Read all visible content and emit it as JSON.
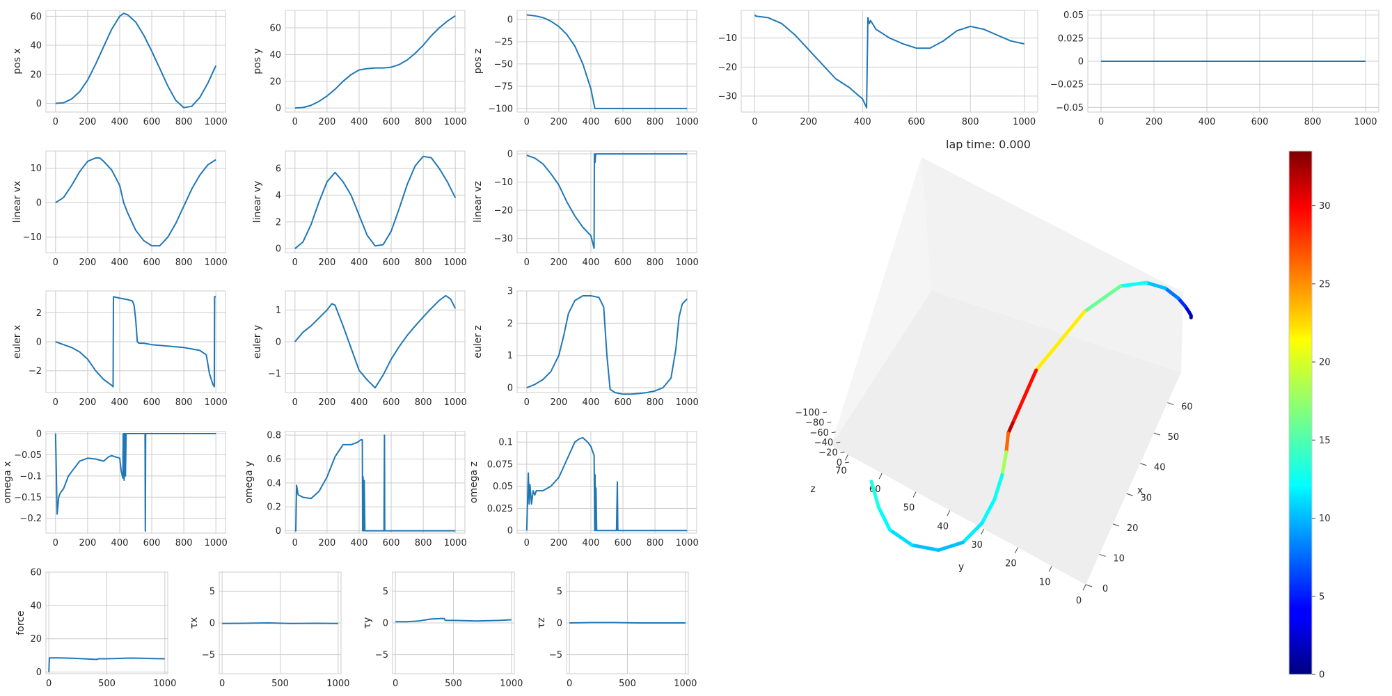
{
  "chart_data": [
    {
      "type": "line",
      "ylabel": "pos x",
      "xlim": [
        -60,
        1060
      ],
      "ylim": [
        -6,
        64
      ],
      "xticks": [
        0,
        200,
        400,
        600,
        800,
        1000
      ],
      "yticks": [
        0,
        20,
        40,
        60
      ],
      "x": [
        0,
        50,
        100,
        150,
        200,
        250,
        300,
        350,
        400,
        425,
        450,
        500,
        550,
        600,
        650,
        700,
        750,
        800,
        850,
        900,
        950,
        1000
      ],
      "values": [
        0,
        0.4,
        3,
        8,
        16,
        27,
        39,
        51,
        60,
        62,
        61,
        56,
        47,
        36,
        24,
        12,
        2,
        -3,
        -2,
        4,
        14,
        26
      ]
    },
    {
      "type": "line",
      "ylabel": "pos y",
      "xlim": [
        -60,
        1060
      ],
      "ylim": [
        -3,
        73
      ],
      "xticks": [
        0,
        200,
        400,
        600,
        800,
        1000
      ],
      "yticks": [
        0,
        20,
        40,
        60
      ],
      "x": [
        0,
        50,
        100,
        150,
        200,
        250,
        300,
        350,
        400,
        450,
        500,
        550,
        600,
        650,
        700,
        750,
        800,
        850,
        900,
        950,
        1000
      ],
      "values": [
        0,
        0.4,
        2,
        5,
        9,
        14,
        20,
        25,
        28.5,
        29.5,
        30,
        30,
        30.5,
        32.5,
        36,
        41,
        47,
        54,
        60,
        65,
        69
      ]
    },
    {
      "type": "line",
      "ylabel": "pos z",
      "xlim": [
        -60,
        1060
      ],
      "ylim": [
        -104,
        10
      ],
      "xticks": [
        0,
        200,
        400,
        600,
        800,
        1000
      ],
      "yticks": [
        0,
        -25,
        -50,
        -75,
        -100
      ],
      "x": [
        0,
        50,
        100,
        150,
        200,
        250,
        300,
        350,
        400,
        425,
        450,
        500,
        600,
        700,
        800,
        900,
        1000
      ],
      "values": [
        5,
        4,
        2,
        -2,
        -8,
        -17,
        -30,
        -50,
        -78,
        -100,
        -100,
        -100,
        -100,
        -100,
        -100,
        -100,
        -100
      ]
    },
    {
      "type": "line",
      "ylabel": "",
      "xlim": [
        -50,
        1050
      ],
      "ylim": [
        -35.5,
        -0.5
      ],
      "xticks": [
        0,
        200,
        400,
        600,
        800,
        1000
      ],
      "yticks": [
        -10,
        -20,
        -30
      ],
      "x": [
        0,
        5,
        50,
        100,
        150,
        200,
        250,
        300,
        350,
        400,
        415,
        420,
        425,
        430,
        450,
        500,
        550,
        600,
        650,
        700,
        750,
        800,
        850,
        900,
        950,
        1000
      ],
      "values": [
        -2,
        -2.5,
        -3,
        -5,
        -9,
        -14,
        -19,
        -24,
        -27,
        -31,
        -34,
        -3,
        -5,
        -4,
        -7,
        -10,
        -12,
        -13.5,
        -13.5,
        -11,
        -7.5,
        -6,
        -7,
        -9,
        -11,
        -12
      ]
    },
    {
      "type": "line",
      "ylabel": "",
      "xlim": [
        -50,
        1050
      ],
      "ylim": [
        -0.055,
        0.055
      ],
      "xticks": [
        0,
        200,
        400,
        600,
        800,
        1000
      ],
      "yticks": [
        0.05,
        0.025,
        0,
        -0.025,
        -0.05
      ],
      "x": [
        0,
        1000
      ],
      "values": [
        0,
        0
      ]
    },
    {
      "type": "line",
      "ylabel": "linear vx",
      "xlim": [
        -60,
        1060
      ],
      "ylim": [
        -14.5,
        15
      ],
      "xticks": [
        0,
        200,
        400,
        600,
        800,
        1000
      ],
      "yticks": [
        10,
        0,
        -10
      ],
      "x": [
        0,
        50,
        100,
        150,
        200,
        250,
        275,
        300,
        350,
        400,
        425,
        450,
        500,
        550,
        600,
        650,
        700,
        750,
        800,
        850,
        900,
        950,
        1000
      ],
      "values": [
        0,
        1.5,
        5,
        9,
        12,
        13,
        13,
        12,
        9.5,
        5,
        0,
        -3,
        -8,
        -11,
        -12.5,
        -12.5,
        -10,
        -6,
        -1,
        4,
        8,
        11,
        12.5
      ]
    },
    {
      "type": "line",
      "ylabel": "linear vy",
      "xlim": [
        -60,
        1060
      ],
      "ylim": [
        -0.3,
        7.3
      ],
      "xticks": [
        0,
        200,
        400,
        600,
        800,
        1000
      ],
      "yticks": [
        0,
        2,
        4,
        6
      ],
      "x": [
        0,
        50,
        100,
        150,
        200,
        250,
        300,
        350,
        400,
        450,
        500,
        550,
        600,
        650,
        700,
        750,
        800,
        850,
        900,
        950,
        1000
      ],
      "values": [
        0,
        0.5,
        1.8,
        3.5,
        5,
        5.7,
        5,
        4,
        2.5,
        1,
        0.2,
        0.3,
        1.3,
        3,
        4.8,
        6.2,
        6.9,
        6.8,
        6,
        5,
        3.8
      ]
    },
    {
      "type": "line",
      "ylabel": "linear vz",
      "xlim": [
        -60,
        1060
      ],
      "ylim": [
        -35,
        1
      ],
      "xticks": [
        0,
        200,
        400,
        600,
        800,
        1000
      ],
      "yticks": [
        0,
        -10,
        -20,
        -30
      ],
      "x": [
        0,
        50,
        100,
        150,
        200,
        250,
        300,
        350,
        400,
        418,
        420,
        422,
        424,
        426,
        430,
        440,
        500,
        600,
        700,
        800,
        900,
        1000
      ],
      "values": [
        -0.5,
        -1.5,
        -3.5,
        -7,
        -11,
        -17,
        -22,
        -26,
        -29,
        -33,
        -33.5,
        0,
        -1,
        -3,
        0,
        0,
        0,
        0,
        0,
        0,
        0,
        0
      ]
    },
    {
      "type": "line",
      "ylabel": "euler x",
      "xlim": [
        -60,
        1060
      ],
      "ylim": [
        -3.5,
        3.5
      ],
      "xticks": [
        0,
        200,
        400,
        600,
        800,
        1000
      ],
      "yticks": [
        2,
        0,
        -2
      ],
      "x": [
        0,
        50,
        100,
        150,
        200,
        250,
        300,
        350,
        359,
        361,
        400,
        450,
        480,
        490,
        500,
        510,
        520,
        550,
        600,
        700,
        800,
        850,
        900,
        940,
        960,
        980,
        990,
        992,
        1000
      ],
      "values": [
        0,
        -0.2,
        -0.4,
        -0.7,
        -1.2,
        -2,
        -2.6,
        -3,
        -3.1,
        3.1,
        3,
        2.9,
        2.8,
        2.5,
        1.5,
        0,
        -0.1,
        -0.1,
        -0.2,
        -0.3,
        -0.4,
        -0.5,
        -0.6,
        -0.9,
        -2.2,
        -2.9,
        -3.1,
        3.1,
        3.1
      ]
    },
    {
      "type": "line",
      "ylabel": "euler y",
      "xlim": [
        -60,
        1060
      ],
      "ylim": [
        -1.6,
        1.6
      ],
      "xticks": [
        0,
        200,
        400,
        600,
        800,
        1000
      ],
      "yticks": [
        1,
        0,
        -1
      ],
      "x": [
        0,
        50,
        100,
        150,
        200,
        230,
        250,
        300,
        350,
        400,
        450,
        500,
        550,
        600,
        650,
        700,
        750,
        800,
        850,
        900,
        940,
        970,
        1000
      ],
      "values": [
        0,
        0.3,
        0.5,
        0.75,
        1,
        1.2,
        1.15,
        0.5,
        -0.2,
        -0.9,
        -1.2,
        -1.45,
        -1.05,
        -0.55,
        -0.15,
        0.2,
        0.5,
        0.78,
        1.05,
        1.3,
        1.45,
        1.35,
        1.05
      ]
    },
    {
      "type": "line",
      "ylabel": "euler z",
      "xlim": [
        -60,
        1060
      ],
      "ylim": [
        -0.15,
        3
      ],
      "xticks": [
        0,
        200,
        400,
        600,
        800,
        1000
      ],
      "yticks": [
        0,
        1,
        2,
        3
      ],
      "x": [
        0,
        50,
        100,
        150,
        200,
        230,
        260,
        300,
        350,
        400,
        450,
        480,
        500,
        520,
        550,
        600,
        650,
        700,
        750,
        800,
        850,
        900,
        930,
        950,
        970,
        1000
      ],
      "values": [
        0,
        0.1,
        0.25,
        0.5,
        1,
        1.6,
        2.3,
        2.7,
        2.85,
        2.85,
        2.8,
        2.5,
        1,
        -0.05,
        -0.15,
        -0.2,
        -0.2,
        -0.18,
        -0.15,
        -0.1,
        0,
        0.3,
        1.2,
        2.2,
        2.6,
        2.75
      ]
    },
    {
      "type": "line",
      "ylabel": "omega x",
      "xlim": [
        -60,
        1060
      ],
      "ylim": [
        -0.235,
        0.005
      ],
      "xticks": [
        0,
        200,
        400,
        600,
        800,
        1000
      ],
      "yticks": [
        0,
        -0.05,
        -0.1,
        -0.15,
        -0.2
      ],
      "x": [
        0,
        10,
        20,
        30,
        50,
        80,
        100,
        150,
        200,
        250,
        300,
        330,
        350,
        400,
        410,
        420,
        422,
        424,
        426,
        428,
        430,
        432,
        434,
        436,
        440,
        450,
        500,
        550,
        558,
        560,
        562,
        570,
        600,
        700,
        800,
        900,
        1000
      ],
      "values": [
        0,
        -0.19,
        -0.15,
        -0.14,
        -0.13,
        -0.1,
        -0.09,
        -0.065,
        -0.058,
        -0.06,
        -0.065,
        -0.055,
        -0.052,
        -0.058,
        -0.09,
        -0.105,
        0,
        -0.1,
        0,
        -0.11,
        0,
        -0.09,
        0,
        -0.1,
        0,
        0,
        0,
        0,
        0,
        -0.23,
        0,
        0,
        0,
        0,
        0,
        0,
        0
      ]
    },
    {
      "type": "line",
      "ylabel": "omega y",
      "xlim": [
        -60,
        1060
      ],
      "ylim": [
        -0.02,
        0.83
      ],
      "xticks": [
        0,
        200,
        400,
        600,
        800,
        1000
      ],
      "yticks": [
        0,
        0.2,
        0.4,
        0.6,
        0.8
      ],
      "x": [
        0,
        5,
        10,
        20,
        50,
        100,
        150,
        200,
        250,
        300,
        350,
        390,
        410,
        420,
        422,
        425,
        428,
        432,
        436,
        440,
        450,
        500,
        555,
        558,
        560,
        562,
        566,
        600,
        700,
        800,
        900,
        1000
      ],
      "values": [
        0,
        0,
        0.38,
        0.3,
        0.28,
        0.27,
        0.33,
        0.45,
        0.62,
        0.72,
        0.72,
        0.74,
        0.76,
        0.76,
        0,
        0.45,
        0,
        0.42,
        0,
        0,
        0,
        0,
        0,
        0.8,
        0,
        0,
        0,
        0,
        0,
        0,
        0,
        0
      ]
    },
    {
      "type": "line",
      "ylabel": "omega z",
      "xlim": [
        -60,
        1060
      ],
      "ylim": [
        -0.003,
        0.112
      ],
      "xticks": [
        0,
        200,
        400,
        600,
        800,
        1000
      ],
      "yticks": [
        0,
        0.025,
        0.05,
        0.075,
        0.1
      ],
      "x": [
        0,
        10,
        15,
        20,
        30,
        40,
        50,
        60,
        100,
        150,
        200,
        250,
        300,
        330,
        350,
        380,
        400,
        420,
        424,
        426,
        428,
        432,
        436,
        440,
        450,
        500,
        560,
        565,
        568,
        572,
        600,
        700,
        800,
        900,
        1000
      ],
      "values": [
        0,
        0.065,
        0.03,
        0.052,
        0.03,
        0.045,
        0.04,
        0.045,
        0.045,
        0.05,
        0.06,
        0.08,
        0.1,
        0.104,
        0.105,
        0.1,
        0.095,
        0.085,
        0,
        0.063,
        0,
        0.048,
        0,
        0,
        0,
        0,
        0,
        0.055,
        0,
        0,
        0,
        0,
        0,
        0,
        0
      ]
    },
    {
      "type": "line",
      "ylabel": "force",
      "xlim": [
        -25,
        1025
      ],
      "ylim": [
        -1,
        60
      ],
      "xticks": [
        0,
        500,
        1000
      ],
      "yticks": [
        0,
        20,
        40,
        60
      ],
      "x": [
        0,
        5,
        10,
        100,
        200,
        300,
        400,
        420,
        425,
        500,
        600,
        700,
        800,
        900,
        1000
      ],
      "values": [
        0,
        8.5,
        8.5,
        8.5,
        8.3,
        8,
        7.6,
        7.6,
        8,
        8,
        8.2,
        8.4,
        8.3,
        8.1,
        8
      ]
    },
    {
      "type": "line",
      "ylabel": "τx",
      "xlim": [
        -25,
        1025
      ],
      "ylim": [
        -8,
        8
      ],
      "xticks": [
        0,
        500,
        1000
      ],
      "yticks": [
        5,
        0,
        -5
      ],
      "x": [
        0,
        200,
        400,
        600,
        800,
        1000
      ],
      "values": [
        -0.1,
        -0.05,
        0,
        -0.1,
        -0.05,
        -0.1
      ]
    },
    {
      "type": "line",
      "ylabel": "τy",
      "xlim": [
        -25,
        1025
      ],
      "ylim": [
        -8,
        8
      ],
      "xticks": [
        0,
        500,
        1000
      ],
      "yticks": [
        5,
        0,
        -5
      ],
      "x": [
        0,
        100,
        200,
        300,
        400,
        420,
        430,
        500,
        700,
        900,
        1000
      ],
      "values": [
        0.2,
        0.2,
        0.3,
        0.6,
        0.7,
        0.7,
        0.4,
        0.4,
        0.3,
        0.4,
        0.5
      ]
    },
    {
      "type": "line",
      "ylabel": "τz",
      "xlim": [
        -25,
        1025
      ],
      "ylim": [
        -8,
        8
      ],
      "xticks": [
        0,
        500,
        1000
      ],
      "yticks": [
        5,
        0,
        -5
      ],
      "x": [
        0,
        200,
        400,
        600,
        800,
        1000
      ],
      "values": [
        0,
        0.05,
        0.05,
        0,
        0,
        0
      ]
    },
    {
      "type": "line3d",
      "title": "lap time: 0.000",
      "xlabel": "x",
      "ylabel": "y",
      "zlabel": "z",
      "xticks": [
        0,
        10,
        20,
        30,
        40,
        50,
        60
      ],
      "yticks": [
        0,
        10,
        20,
        30,
        40,
        50,
        60,
        70
      ],
      "zticks": [
        0,
        -20,
        -40,
        -60,
        -80,
        -100
      ],
      "x": [
        -0.5,
        0.5,
        3,
        8,
        16,
        27,
        39,
        51,
        60,
        62,
        61,
        56,
        47,
        36,
        24,
        12,
        2,
        -3,
        -2,
        4,
        14,
        26
      ],
      "y": [
        0,
        0.1,
        0.5,
        1.5,
        3,
        6,
        10,
        15,
        21,
        28,
        29,
        30,
        30,
        30.5,
        32,
        35,
        40,
        47,
        55,
        62,
        66,
        69
      ],
      "z": [
        5,
        5,
        4,
        2,
        -2,
        -8,
        -17,
        -30,
        -50,
        -78,
        -100,
        -100,
        -100,
        -100,
        -100,
        -100,
        -100,
        -100,
        -100,
        -100,
        -100,
        -100
      ],
      "speed": [
        0,
        1,
        2,
        4,
        7,
        9,
        12,
        14,
        18,
        25,
        33,
        30,
        22,
        14,
        12,
        13,
        11,
        10,
        11,
        12,
        13,
        14
      ]
    },
    {
      "type": "colorbar",
      "colormap": "jet",
      "range": [
        0,
        33.5
      ],
      "ticks": [
        0,
        5,
        10,
        15,
        20,
        25,
        30
      ]
    }
  ]
}
